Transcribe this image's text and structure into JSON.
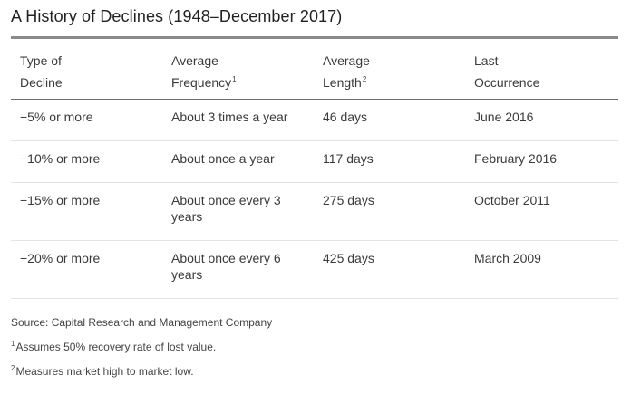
{
  "title": "A History of Declines (1948–December 2017)",
  "table": {
    "headers": [
      {
        "line1": "Type of",
        "line2": "Decline",
        "sup": ""
      },
      {
        "line1": "Average",
        "line2": "Frequency",
        "sup": "1"
      },
      {
        "line1": "Average",
        "line2": "Length",
        "sup": "2"
      },
      {
        "line1": "Last",
        "line2": "Occurrence",
        "sup": ""
      }
    ],
    "rows": [
      {
        "type": "−5% or more",
        "frequency": "About 3 times a year",
        "length": "46 days",
        "last": "June 2016"
      },
      {
        "type": "−10% or more",
        "frequency": "About once a year",
        "length": "117 days",
        "last": "February 2016"
      },
      {
        "type": "−15% or more",
        "frequency": "About once every 3 years",
        "length": "275 days",
        "last": "October 2011"
      },
      {
        "type": "−20% or more",
        "frequency": "About once every 6 years",
        "length": "425 days",
        "last": "March 2009"
      }
    ]
  },
  "notes": {
    "source": "Source: Capital Research and Management Company",
    "footnote1_mark": "1",
    "footnote1_text": "Assumes 50% recovery rate of lost value.",
    "footnote2_mark": "2",
    "footnote2_text": "Measures market high to market low."
  }
}
